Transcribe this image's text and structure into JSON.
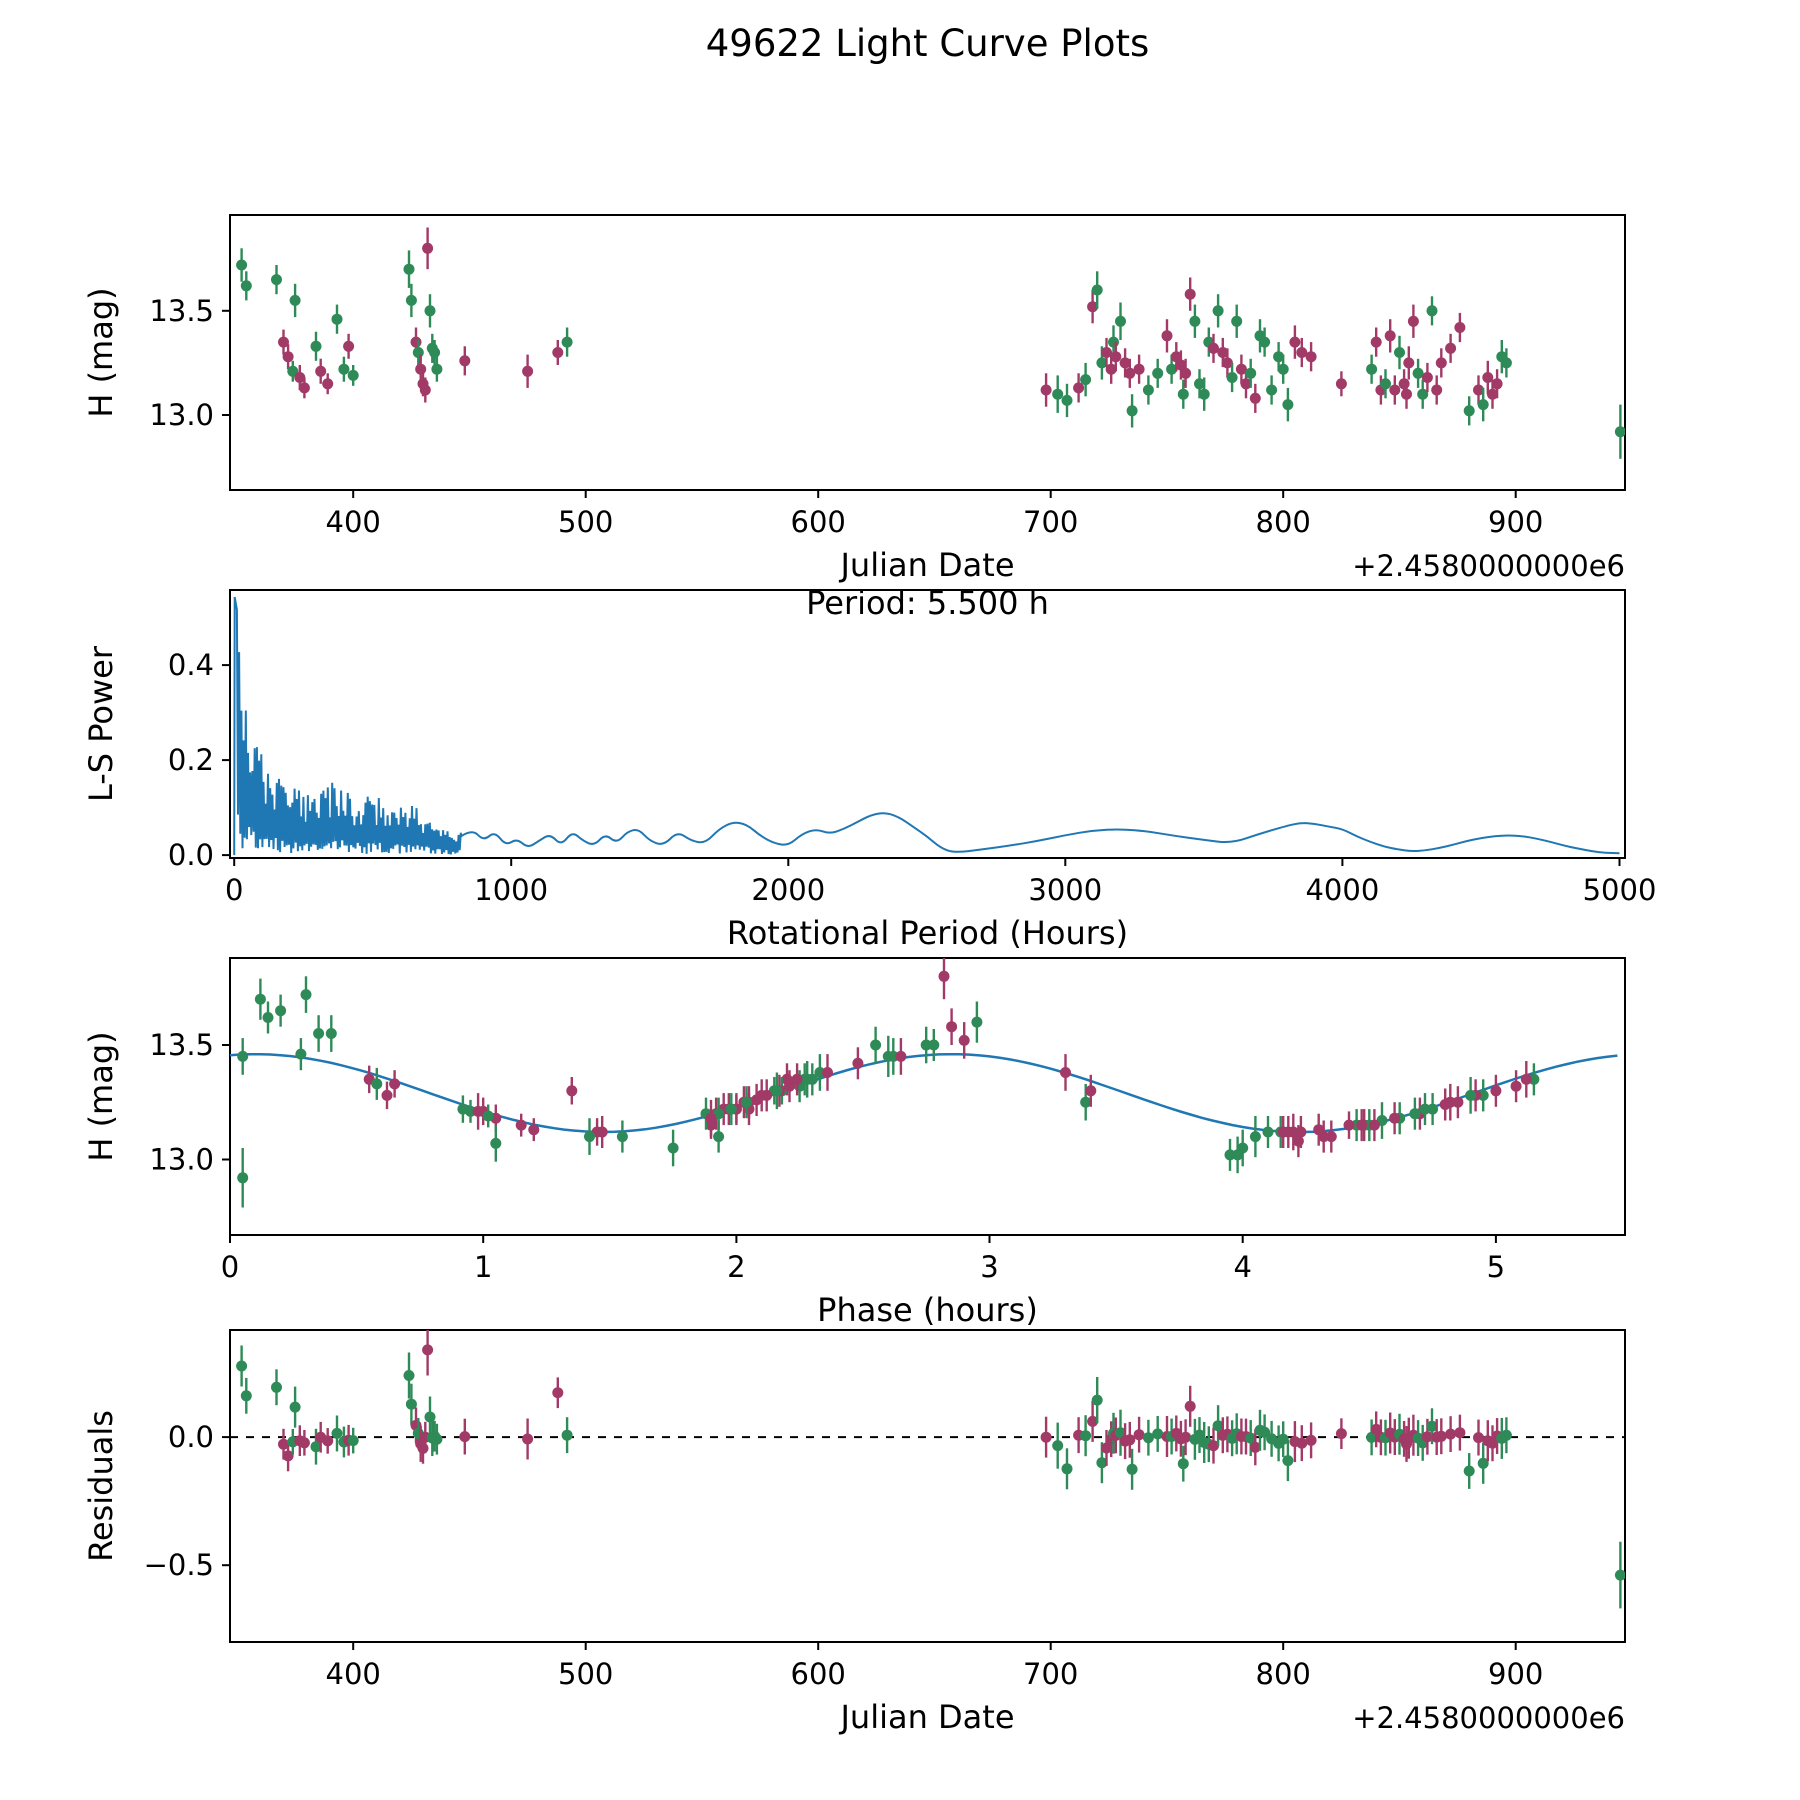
{
  "title": "49622 Light Curve Plots",
  "chart_data": [
    {
      "id": "jd_mag",
      "type": "scatter",
      "xlabel": "Julian Date",
      "ylabel": "H (mag)",
      "x_offset_label": "+2.4580000000e6",
      "xlim": [
        347,
        947
      ],
      "ylim": [
        12.64,
        13.96
      ],
      "xticks": [
        400,
        500,
        600,
        700,
        800,
        900
      ],
      "xtick_labels": [
        "400",
        "500",
        "600",
        "700",
        "800",
        "900"
      ],
      "yticks": [
        13.0,
        13.5
      ],
      "ytick_labels": [
        "13.0",
        "13.5"
      ]
    },
    {
      "id": "periodogram",
      "type": "line",
      "annotation": "Period: 5.500 h",
      "peak_period_hours": 5.5,
      "xlabel": "Rotational Period (Hours)",
      "ylabel": "L-S Power",
      "xlim": [
        -15,
        5020
      ],
      "ylim": [
        -0.006,
        0.558
      ],
      "xticks": [
        0,
        1000,
        2000,
        3000,
        4000,
        5000
      ],
      "xtick_labels": [
        "0",
        "1000",
        "2000",
        "3000",
        "4000",
        "5000"
      ],
      "yticks": [
        0.0,
        0.2,
        0.4
      ],
      "ytick_labels": [
        "0.0",
        "0.2",
        "0.4"
      ],
      "line_color": "#1f77b4",
      "spiky_region": {
        "p_max": 820,
        "envelope": [
          [
            0,
            0.55
          ],
          [
            15,
            0.5
          ],
          [
            30,
            0.33
          ],
          [
            60,
            0.27
          ],
          [
            100,
            0.22
          ],
          [
            160,
            0.17
          ],
          [
            220,
            0.14
          ],
          [
            300,
            0.13
          ],
          [
            360,
            0.16
          ],
          [
            430,
            0.12
          ],
          [
            500,
            0.13
          ],
          [
            570,
            0.1
          ],
          [
            640,
            0.11
          ],
          [
            700,
            0.08
          ],
          [
            760,
            0.06
          ],
          [
            820,
            0.05
          ]
        ]
      },
      "smooth_curve": [
        [
          820,
          0.04
        ],
        [
          860,
          0.055
        ],
        [
          900,
          0.03
        ],
        [
          940,
          0.05
        ],
        [
          980,
          0.02
        ],
        [
          1020,
          0.035
        ],
        [
          1060,
          0.015
        ],
        [
          1100,
          0.03
        ],
        [
          1140,
          0.045
        ],
        [
          1180,
          0.02
        ],
        [
          1220,
          0.05
        ],
        [
          1260,
          0.03
        ],
        [
          1300,
          0.02
        ],
        [
          1340,
          0.045
        ],
        [
          1380,
          0.025
        ],
        [
          1420,
          0.05
        ],
        [
          1460,
          0.055
        ],
        [
          1500,
          0.03
        ],
        [
          1550,
          0.02
        ],
        [
          1600,
          0.05
        ],
        [
          1650,
          0.03
        ],
        [
          1700,
          0.025
        ],
        [
          1750,
          0.055
        ],
        [
          1800,
          0.07
        ],
        [
          1850,
          0.065
        ],
        [
          1900,
          0.04
        ],
        [
          1950,
          0.025
        ],
        [
          2000,
          0.02
        ],
        [
          2050,
          0.045
        ],
        [
          2100,
          0.055
        ],
        [
          2150,
          0.045
        ],
        [
          2200,
          0.055
        ],
        [
          2250,
          0.07
        ],
        [
          2300,
          0.085
        ],
        [
          2350,
          0.09
        ],
        [
          2400,
          0.08
        ],
        [
          2450,
          0.06
        ],
        [
          2500,
          0.04
        ],
        [
          2550,
          0.015
        ],
        [
          2600,
          0.005
        ],
        [
          2700,
          0.012
        ],
        [
          2800,
          0.02
        ],
        [
          2900,
          0.03
        ],
        [
          3000,
          0.042
        ],
        [
          3100,
          0.052
        ],
        [
          3200,
          0.055
        ],
        [
          3300,
          0.05
        ],
        [
          3400,
          0.04
        ],
        [
          3500,
          0.032
        ],
        [
          3600,
          0.025
        ],
        [
          3700,
          0.045
        ],
        [
          3800,
          0.062
        ],
        [
          3850,
          0.068
        ],
        [
          3900,
          0.066
        ],
        [
          3950,
          0.06
        ],
        [
          4000,
          0.055
        ],
        [
          4050,
          0.04
        ],
        [
          4100,
          0.028
        ],
        [
          4150,
          0.018
        ],
        [
          4200,
          0.012
        ],
        [
          4250,
          0.008
        ],
        [
          4300,
          0.01
        ],
        [
          4350,
          0.015
        ],
        [
          4400,
          0.022
        ],
        [
          4450,
          0.03
        ],
        [
          4500,
          0.036
        ],
        [
          4550,
          0.04
        ],
        [
          4600,
          0.042
        ],
        [
          4650,
          0.04
        ],
        [
          4700,
          0.035
        ],
        [
          4750,
          0.028
        ],
        [
          4800,
          0.02
        ],
        [
          4850,
          0.014
        ],
        [
          4900,
          0.008
        ],
        [
          4950,
          0.005
        ],
        [
          5000,
          0.004
        ]
      ]
    },
    {
      "id": "phase_mag",
      "type": "scatter+line",
      "xlabel": "Phase (hours)",
      "ylabel": "H (mag)",
      "xlim": [
        0,
        5.51
      ],
      "ylim": [
        12.67,
        13.88
      ],
      "xticks": [
        0,
        1,
        2,
        3,
        4,
        5
      ],
      "xtick_labels": [
        "0",
        "1",
        "2",
        "3",
        "4",
        "5"
      ],
      "yticks": [
        13.0,
        13.5
      ],
      "ytick_labels": [
        "13.0",
        "13.5"
      ],
      "fit_color": "#1f77b4"
    },
    {
      "id": "residuals",
      "type": "scatter",
      "xlabel": "Julian Date",
      "ylabel": "Residuals",
      "x_offset_label": "+2.4580000000e6",
      "xlim": [
        347,
        947
      ],
      "ylim": [
        -0.8,
        0.418
      ],
      "xticks": [
        400,
        500,
        600,
        700,
        800,
        900
      ],
      "xtick_labels": [
        "400",
        "500",
        "600",
        "700",
        "800",
        "900"
      ],
      "yticks": [
        -0.5,
        0.0
      ],
      "ytick_labels": [
        "−0.5",
        "0.0"
      ],
      "zero_line": true
    }
  ],
  "model": {
    "mean_mag": 13.29,
    "amplitude_mag": 0.17,
    "period_hours": 5.5,
    "cos_period_hours": 2.75,
    "phase_offset_hours": 0.1
  },
  "points": {
    "columns": [
      "jd_minus_2458000",
      "phase_hours",
      "h_mag",
      "err_mag",
      "color_index"
    ],
    "colors": {
      "0": "#2e8b57",
      "1": "#a23a67"
    },
    "rows": [
      [
        352,
        0.3,
        13.72,
        0.08,
        0
      ],
      [
        354,
        0.15,
        13.62,
        0.07,
        0
      ],
      [
        367,
        0.2,
        13.65,
        0.07,
        0
      ],
      [
        370,
        0.55,
        13.35,
        0.06,
        1
      ],
      [
        372,
        0.62,
        13.28,
        0.06,
        1
      ],
      [
        374,
        0.95,
        13.21,
        0.05,
        0
      ],
      [
        375,
        0.35,
        13.55,
        0.08,
        0
      ],
      [
        377,
        1.05,
        13.18,
        0.06,
        1
      ],
      [
        379,
        1.2,
        13.13,
        0.05,
        1
      ],
      [
        384,
        0.58,
        13.33,
        0.07,
        0
      ],
      [
        386,
        1.0,
        13.21,
        0.06,
        1
      ],
      [
        389,
        1.15,
        13.15,
        0.05,
        1
      ],
      [
        393,
        0.28,
        13.46,
        0.07,
        0
      ],
      [
        396,
        0.92,
        13.22,
        0.06,
        0
      ],
      [
        398,
        0.65,
        13.33,
        0.06,
        1
      ],
      [
        400,
        1.02,
        13.19,
        0.05,
        0
      ],
      [
        424,
        0.12,
        13.7,
        0.09,
        0
      ],
      [
        425,
        0.4,
        13.55,
        0.08,
        0
      ],
      [
        427,
        2.2,
        13.35,
        0.07,
        1
      ],
      [
        428,
        2.15,
        13.3,
        0.06,
        0
      ],
      [
        429,
        2.05,
        13.22,
        0.07,
        1
      ],
      [
        430,
        1.9,
        13.15,
        0.06,
        1
      ],
      [
        431,
        1.45,
        13.12,
        0.06,
        1
      ],
      [
        432,
        2.82,
        13.8,
        0.1,
        1
      ],
      [
        433,
        2.55,
        13.5,
        0.08,
        0
      ],
      [
        434,
        2.25,
        13.32,
        0.07,
        0
      ],
      [
        435,
        2.18,
        13.3,
        0.06,
        0
      ],
      [
        436,
        2.0,
        13.22,
        0.06,
        0
      ],
      [
        448,
        2.08,
        13.26,
        0.07,
        1
      ],
      [
        475,
        0.98,
        13.21,
        0.08,
        1
      ],
      [
        488,
        1.35,
        13.3,
        0.06,
        1
      ],
      [
        492,
        2.3,
        13.35,
        0.07,
        0
      ],
      [
        698,
        4.2,
        13.12,
        0.08,
        1
      ],
      [
        703,
        4.05,
        13.1,
        0.09,
        0
      ],
      [
        707,
        1.05,
        13.07,
        0.08,
        0
      ],
      [
        712,
        4.3,
        13.13,
        0.07,
        1
      ],
      [
        715,
        4.55,
        13.17,
        0.08,
        0
      ],
      [
        718,
        2.9,
        13.52,
        0.08,
        1
      ],
      [
        720,
        2.95,
        13.6,
        0.09,
        0
      ],
      [
        722,
        3.38,
        13.25,
        0.08,
        0
      ],
      [
        724,
        3.4,
        13.3,
        0.07,
        1
      ],
      [
        726,
        2.0,
        13.22,
        0.07,
        1
      ],
      [
        727,
        2.28,
        13.35,
        0.08,
        0
      ],
      [
        728,
        2.12,
        13.28,
        0.07,
        1
      ],
      [
        730,
        2.6,
        13.45,
        0.09,
        0
      ],
      [
        732,
        4.85,
        13.25,
        0.07,
        1
      ],
      [
        734,
        4.7,
        13.2,
        0.07,
        1
      ],
      [
        735,
        3.98,
        13.02,
        0.08,
        0
      ],
      [
        738,
        1.95,
        13.22,
        0.07,
        1
      ],
      [
        742,
        4.15,
        13.12,
        0.07,
        0
      ],
      [
        746,
        1.88,
        13.2,
        0.07,
        0
      ],
      [
        750,
        3.3,
        13.38,
        0.08,
        1
      ],
      [
        752,
        4.72,
        13.22,
        0.07,
        0
      ],
      [
        754,
        2.1,
        13.28,
        0.07,
        1
      ],
      [
        756,
        4.8,
        13.24,
        0.07,
        1
      ],
      [
        757,
        1.93,
        13.1,
        0.07,
        0
      ],
      [
        758,
        1.92,
        13.2,
        0.07,
        1
      ],
      [
        760,
        2.85,
        13.58,
        0.08,
        1
      ],
      [
        762,
        0.05,
        13.45,
        0.08,
        0
      ],
      [
        764,
        4.45,
        13.15,
        0.07,
        0
      ],
      [
        766,
        1.42,
        13.1,
        0.08,
        0
      ],
      [
        768,
        5.15,
        13.35,
        0.07,
        0
      ],
      [
        770,
        5.08,
        13.32,
        0.07,
        1
      ],
      [
        772,
        2.75,
        13.5,
        0.08,
        0
      ],
      [
        774,
        2.17,
        13.3,
        0.07,
        1
      ],
      [
        776,
        2.03,
        13.25,
        0.07,
        1
      ],
      [
        778,
        4.62,
        13.18,
        0.07,
        0
      ],
      [
        780,
        2.62,
        13.45,
        0.08,
        0
      ],
      [
        782,
        1.97,
        13.22,
        0.07,
        1
      ],
      [
        784,
        4.48,
        13.15,
        0.07,
        1
      ],
      [
        786,
        4.68,
        13.2,
        0.07,
        0
      ],
      [
        788,
        4.22,
        13.08,
        0.07,
        1
      ],
      [
        790,
        2.33,
        13.38,
        0.08,
        0
      ],
      [
        792,
        2.27,
        13.35,
        0.07,
        0
      ],
      [
        795,
        4.1,
        13.12,
        0.07,
        0
      ],
      [
        798,
        4.95,
        13.28,
        0.07,
        0
      ],
      [
        800,
        4.75,
        13.22,
        0.07,
        0
      ],
      [
        802,
        4.0,
        13.05,
        0.08,
        0
      ],
      [
        805,
        5.12,
        13.35,
        0.08,
        1
      ],
      [
        808,
        5.0,
        13.3,
        0.07,
        1
      ],
      [
        812,
        4.92,
        13.28,
        0.07,
        1
      ],
      [
        825,
        4.42,
        13.15,
        0.06,
        1
      ],
      [
        838,
        1.98,
        13.22,
        0.07,
        0
      ],
      [
        840,
        2.24,
        13.35,
        0.07,
        1
      ],
      [
        842,
        4.18,
        13.12,
        0.07,
        1
      ],
      [
        844,
        4.5,
        13.15,
        0.07,
        0
      ],
      [
        846,
        2.36,
        13.38,
        0.08,
        1
      ],
      [
        848,
        1.47,
        13.12,
        0.07,
        1
      ],
      [
        850,
        2.16,
        13.3,
        0.08,
        0
      ],
      [
        852,
        4.52,
        13.15,
        0.07,
        1
      ],
      [
        853,
        4.35,
        13.1,
        0.07,
        1
      ],
      [
        854,
        4.82,
        13.25,
        0.08,
        1
      ],
      [
        856,
        2.65,
        13.45,
        0.08,
        1
      ],
      [
        858,
        1.93,
        13.2,
        0.07,
        0
      ],
      [
        860,
        1.55,
        13.1,
        0.07,
        0
      ],
      [
        862,
        4.6,
        13.18,
        0.07,
        1
      ],
      [
        864,
        2.78,
        13.5,
        0.07,
        0
      ],
      [
        866,
        4.23,
        13.12,
        0.07,
        1
      ],
      [
        868,
        2.05,
        13.25,
        0.07,
        1
      ],
      [
        872,
        2.21,
        13.32,
        0.07,
        1
      ],
      [
        876,
        2.48,
        13.42,
        0.07,
        1
      ],
      [
        880,
        3.95,
        13.02,
        0.07,
        0
      ],
      [
        884,
        4.16,
        13.12,
        0.07,
        1
      ],
      [
        886,
        1.75,
        13.05,
        0.08,
        0
      ],
      [
        888,
        1.9,
        13.18,
        0.08,
        1
      ],
      [
        890,
        4.32,
        13.1,
        0.07,
        1
      ],
      [
        892,
        4.47,
        13.15,
        0.07,
        1
      ],
      [
        894,
        4.9,
        13.28,
        0.08,
        0
      ],
      [
        896,
        2.04,
        13.25,
        0.07,
        0
      ],
      [
        945,
        0.05,
        12.92,
        0.13,
        0
      ]
    ]
  }
}
